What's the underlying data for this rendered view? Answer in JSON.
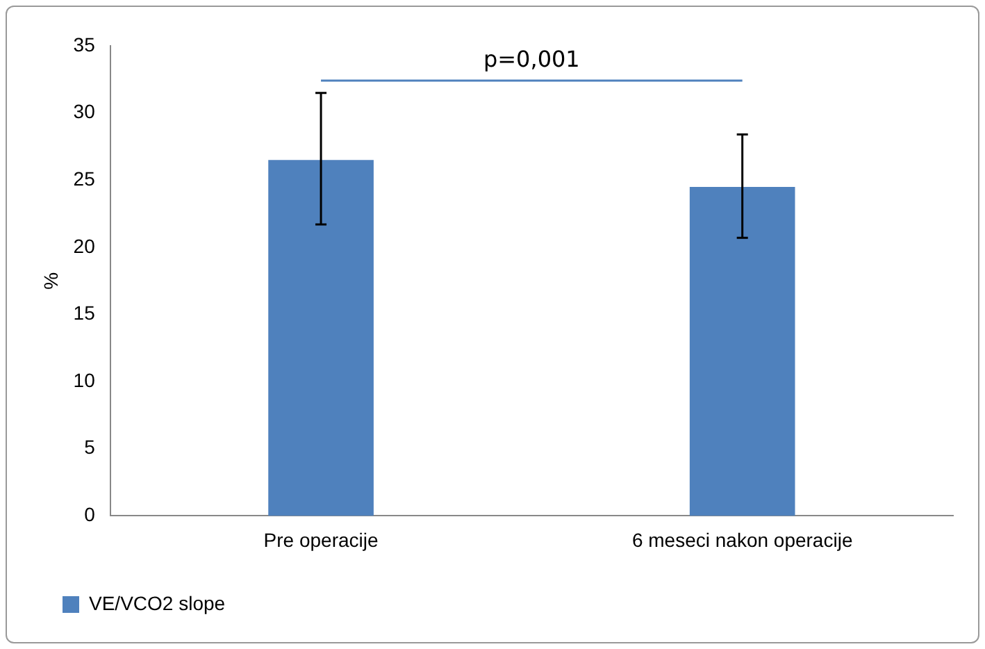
{
  "chart_data": {
    "type": "bar",
    "ylabel": "%",
    "categories": [
      "Pre operacije",
      "6 meseci nakon operacije"
    ],
    "series": [
      {
        "name": "VE/VCO2 slope",
        "color": "#4f81bd",
        "values": [
          26.5,
          24.5
        ],
        "errors": [
          [
            21.7,
            31.5
          ],
          [
            20.7,
            28.4
          ]
        ]
      }
    ],
    "ylim": [
      0,
      35
    ],
    "yticks": [
      0,
      5,
      10,
      15,
      20,
      25,
      30,
      35
    ],
    "grid": false,
    "legend": "bottom",
    "annotations": [
      "p=0,001"
    ]
  }
}
